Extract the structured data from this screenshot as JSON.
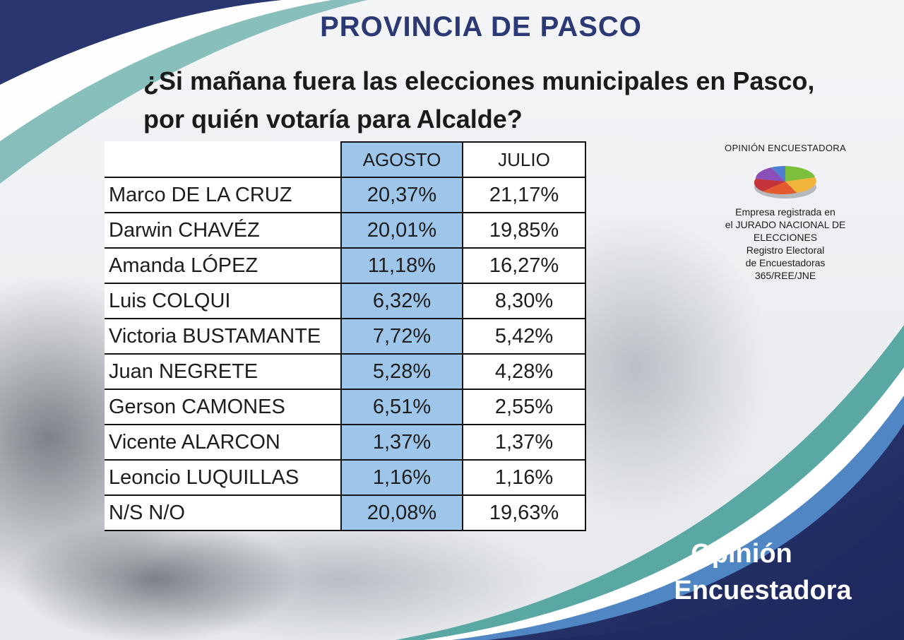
{
  "header": {
    "title": "PROVINCIA DE PASCO",
    "question_line1": "¿Si  mañana fuera las elecciones municipales en Pasco,",
    "question_line2": "por quién votaría para Alcalde?"
  },
  "table": {
    "columns": [
      "AGOSTO",
      "JULIO"
    ],
    "rows": [
      {
        "name": "Marco DE LA CRUZ",
        "agosto": "20,37%",
        "julio": "21,17%"
      },
      {
        "name": "Darwin CHAVÉZ",
        "agosto": "20,01%",
        "julio": "19,85%"
      },
      {
        "name": "Amanda LÓPEZ",
        "agosto": "11,18%",
        "julio": "16,27%"
      },
      {
        "name": "Luis COLQUI",
        "agosto": "6,32%",
        "julio": "8,30%"
      },
      {
        "name": "Victoria BUSTAMANTE",
        "agosto": "7,72%",
        "julio": "5,42%"
      },
      {
        "name": "Juan NEGRETE",
        "agosto": "5,28%",
        "julio": "4,28%"
      },
      {
        "name": "Gerson CAMONES",
        "agosto": "6,51%",
        "julio": "2,55%"
      },
      {
        "name": "Vicente ALARCON",
        "agosto": "1,37%",
        "julio": "1,37%"
      },
      {
        "name": "Leoncio LUQUILLAS",
        "agosto": "1,16%",
        "julio": "1,16%"
      },
      {
        "name": "N/S  N/O",
        "agosto": "20,08%",
        "julio": "19,63%"
      }
    ]
  },
  "company": {
    "name": "OPINIÓN ENCUESTADORA",
    "lines": [
      "Empresa registrada en",
      "el JURADO NACIONAL DE",
      "ELECCIONES",
      "Registro Electoral",
      "de Encuestadoras",
      "365/REE/JNE"
    ]
  },
  "brand": {
    "line1": "Opinión",
    "line2": "Encuestadora"
  },
  "colors": {
    "title": "#2b3a75",
    "agosto_column": "#9ec5ea",
    "navy": "#23306a",
    "teal": "#5aa8a3"
  },
  "icons": [
    "pie-chart-logo-icon"
  ]
}
